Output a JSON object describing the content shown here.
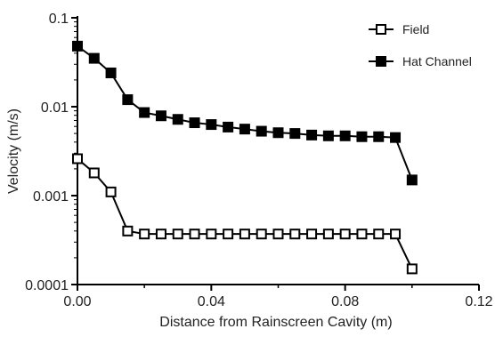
{
  "chart_data": {
    "type": "line",
    "title": "",
    "xlabel": "Distance from Rainscreen Cavity (m)",
    "ylabel": "Velocity (m/s)",
    "x_scale": "linear",
    "y_scale": "log",
    "xlim": [
      0,
      0.12
    ],
    "ylim": [
      0.0001,
      0.1
    ],
    "x_ticks": [
      0,
      0.04,
      0.08,
      0.12
    ],
    "x_tick_labels": [
      "0.00",
      "0.04",
      "0.08",
      "0.12"
    ],
    "y_ticks": [
      0.0001,
      0.001,
      0.01,
      0.1
    ],
    "y_tick_labels": [
      "0.0001",
      "0.001",
      "0.01",
      "0.1"
    ],
    "grid": false,
    "legend_position": "top-right",
    "series": [
      {
        "name": "Field",
        "marker": "open-square",
        "color": "#000000",
        "points": [
          [
            0.0,
            0.0026
          ],
          [
            0.005,
            0.0018
          ],
          [
            0.01,
            0.0011
          ],
          [
            0.015,
            0.0004
          ],
          [
            0.02,
            0.00037
          ],
          [
            0.025,
            0.00037
          ],
          [
            0.03,
            0.00037
          ],
          [
            0.035,
            0.00037
          ],
          [
            0.04,
            0.00037
          ],
          [
            0.045,
            0.00037
          ],
          [
            0.05,
            0.00037
          ],
          [
            0.055,
            0.00037
          ],
          [
            0.06,
            0.00037
          ],
          [
            0.065,
            0.00037
          ],
          [
            0.07,
            0.00037
          ],
          [
            0.075,
            0.00037
          ],
          [
            0.08,
            0.00037
          ],
          [
            0.085,
            0.00037
          ],
          [
            0.09,
            0.00037
          ],
          [
            0.095,
            0.00037
          ],
          [
            0.1,
            0.00015
          ]
        ]
      },
      {
        "name": "Hat Channel",
        "marker": "filled-square",
        "color": "#000000",
        "points": [
          [
            0.0,
            0.048
          ],
          [
            0.005,
            0.035
          ],
          [
            0.01,
            0.024
          ],
          [
            0.015,
            0.012
          ],
          [
            0.02,
            0.0086
          ],
          [
            0.025,
            0.0079
          ],
          [
            0.03,
            0.0072
          ],
          [
            0.035,
            0.0066
          ],
          [
            0.04,
            0.0063
          ],
          [
            0.045,
            0.0059
          ],
          [
            0.05,
            0.0056
          ],
          [
            0.055,
            0.0053
          ],
          [
            0.06,
            0.0051
          ],
          [
            0.065,
            0.005
          ],
          [
            0.07,
            0.0048
          ],
          [
            0.075,
            0.0047
          ],
          [
            0.08,
            0.0047
          ],
          [
            0.085,
            0.0046
          ],
          [
            0.09,
            0.0046
          ],
          [
            0.095,
            0.0045
          ],
          [
            0.1,
            0.0015
          ]
        ]
      }
    ]
  }
}
